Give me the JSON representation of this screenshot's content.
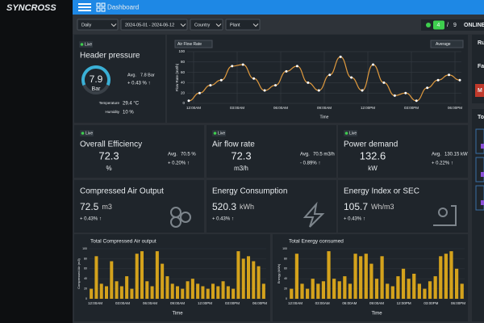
{
  "app": {
    "logo": "SYNCROSS",
    "page": "Dashboard"
  },
  "filters": [
    "Daily",
    "2024-05-01 - 2024-06-12",
    "Country",
    "Plant"
  ],
  "status": {
    "online": "4",
    "separator": "/",
    "total": "9",
    "label": "ONLINE"
  },
  "header_pressure": {
    "badge": "Live",
    "title": "Header pressure",
    "value": "7.9",
    "unit": "Bar",
    "avg_label": "Avg.",
    "avg": "7.8 Bar",
    "change": "+ 0.43 % ↑",
    "temperature_label": "Temperature",
    "temperature": "29.4 °C",
    "humidity_label": "Humidity",
    "humidity": "10 %"
  },
  "air_flow_chart": {
    "type": "line",
    "selector": "Air Flow Rate",
    "aggregate": "Average",
    "y_label": "Flow Rate (m3/h)",
    "x_label": "Time",
    "xticks": [
      "12:00AM",
      "03:00AM",
      "06:00AM",
      "09:00AM",
      "12:00PM",
      "03:00PM",
      "06:00PM"
    ],
    "ylim": [
      0,
      100
    ],
    "yticks": [
      0,
      20,
      40,
      60,
      80,
      100
    ],
    "color": "#e09a3e",
    "values": [
      5,
      20,
      35,
      45,
      72,
      75,
      48,
      25,
      35,
      62,
      72,
      40,
      25,
      55,
      90,
      50,
      25,
      75,
      40,
      15,
      20,
      5,
      30,
      45,
      55,
      45
    ]
  },
  "metrics": [
    {
      "badge": "Live",
      "title": "Overall Efficiency",
      "value": "72.3",
      "unit": "%",
      "avg_label": "Avg.",
      "avg": "70.5 %",
      "change": "+ 0.20% ↑",
      "change_color": "#4cd06a"
    },
    {
      "badge": "Live",
      "title": "Air flow rate",
      "value": "72.3",
      "unit": "m3/h",
      "avg_label": "Avg.",
      "avg": "70.5 m3/h",
      "change": "- 0.89% ↑",
      "change_color": "#f05a5a"
    },
    {
      "badge": "Live",
      "title": "Power demand",
      "value": "132.6",
      "unit": "kW",
      "avg_label": "Avg.",
      "avg": "130.15 kW",
      "change": "+ 0.22% ↑",
      "change_color": "#4cd06a"
    }
  ],
  "totals": [
    {
      "title": "Compressed Air Output",
      "value": "72.5",
      "unit": "m3",
      "change": "+ 0.43% ↑"
    },
    {
      "title": "Energy Consumption",
      "value": "520.3",
      "unit": "kWh",
      "change": "+ 0.43% ↑"
    },
    {
      "title": "Energy Index or SEC",
      "value": "105.7",
      "unit": "Wh/m3",
      "change": "+ 0.43% ↑"
    }
  ],
  "bar_charts": [
    {
      "type": "bar",
      "title": "Total Compressed Air output",
      "y_label": "Compressed Air (m3)",
      "x_label": "Time",
      "xticks": [
        "12:00AM",
        "03:00AM",
        "06:00AM",
        "09:00AM",
        "12:00PM",
        "03:00PM",
        "06:00PM"
      ],
      "ylim": [
        0,
        100
      ],
      "yticks": [
        0,
        20,
        40,
        60,
        80,
        100
      ],
      "color": "#d4a21c",
      "values": [
        20,
        85,
        30,
        25,
        75,
        35,
        25,
        45,
        20,
        90,
        95,
        35,
        25,
        95,
        70,
        45,
        30,
        25,
        20,
        35,
        40,
        30,
        25,
        20,
        30,
        25,
        35,
        25,
        20,
        95,
        80,
        85,
        75,
        65,
        30
      ]
    },
    {
      "type": "bar",
      "title": "Total Energy consumed",
      "y_label": "Energy (kWh)",
      "x_label": "Time",
      "xticks": [
        "12:00AM",
        "03:00AM",
        "06:00AM",
        "09:00AM",
        "12:00PM",
        "03:00PM",
        "06:00PM"
      ],
      "ylim": [
        0,
        100
      ],
      "yticks": [
        0,
        20,
        40,
        60,
        80,
        100
      ],
      "color": "#d4a21c",
      "values": [
        20,
        90,
        30,
        20,
        40,
        30,
        35,
        95,
        40,
        35,
        45,
        30,
        90,
        85,
        90,
        70,
        40,
        85,
        30,
        25,
        45,
        60,
        40,
        50,
        30,
        20,
        35,
        45,
        85,
        90,
        95,
        60,
        30
      ]
    }
  ],
  "right_panel": [
    "Ru",
    "Fa",
    "M",
    "To"
  ]
}
